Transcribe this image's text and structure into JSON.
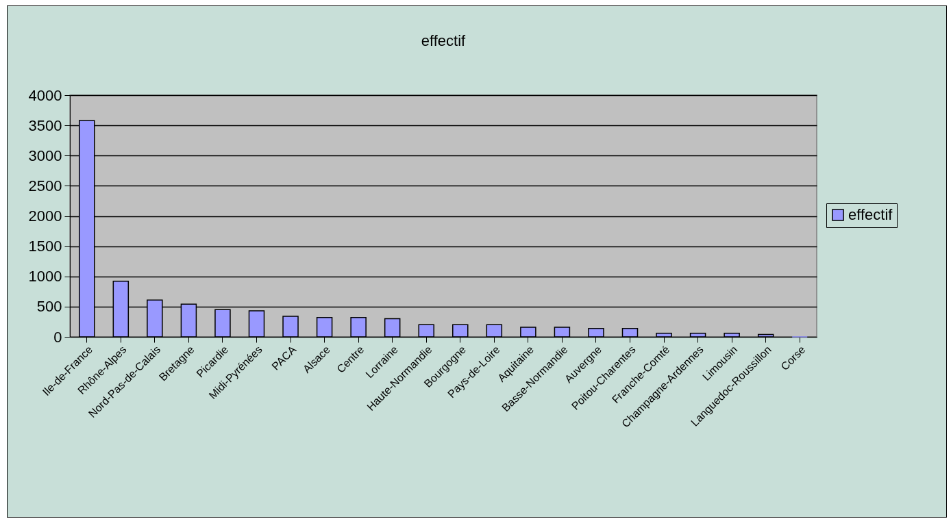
{
  "chart_data": {
    "type": "bar",
    "title": "effectif",
    "categories": [
      "Ile-de-France",
      "Rhône-Alpes",
      "Nord-Pas-de-Calais",
      "Bretagne",
      "Picardie",
      "Midi-Pyrénées",
      "PACA",
      "Alsace",
      "Centre",
      "Lorraine",
      "Haute-Normandie",
      "Bourgogne",
      "Pays-de-Loire",
      "Aquitaine",
      "Basse-Normandie",
      "Auvergne",
      "Poitou-Charentes",
      "Franche-Comté",
      "Champagne-Ardennes",
      "Limousin",
      "Languedoc-Roussillon",
      "Corse"
    ],
    "series": [
      {
        "name": "effectif",
        "color": "#9999ff",
        "values": [
          3580,
          920,
          610,
          540,
          450,
          430,
          340,
          320,
          320,
          300,
          200,
          200,
          200,
          160,
          160,
          140,
          140,
          60,
          60,
          60,
          40,
          0
        ]
      }
    ],
    "ylim": [
      0,
      4000
    ],
    "yticks": [
      0,
      500,
      1000,
      1500,
      2000,
      2500,
      3000,
      3500,
      4000
    ],
    "grid": "y",
    "legend": "right"
  }
}
